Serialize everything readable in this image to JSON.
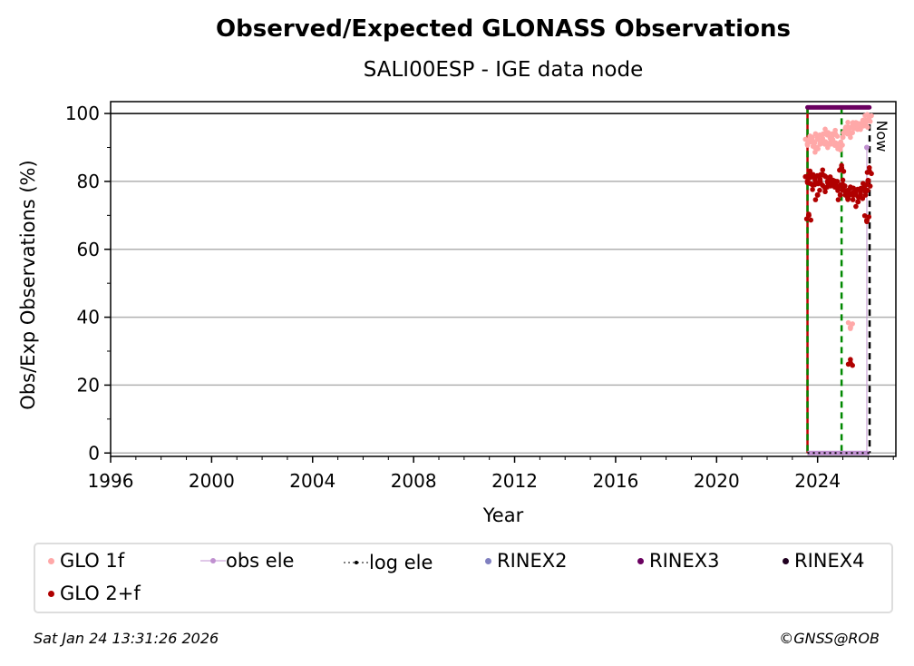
{
  "chart_data": {
    "type": "scatter",
    "title": "Observed/Expected GLONASS Observations",
    "subtitle": "SALI00ESP - IGE data node",
    "xlabel": "Year",
    "ylabel": "Obs/Exp Observations (%)",
    "xlim": [
      1996,
      2027.1
    ],
    "ylim": [
      -1,
      103.5
    ],
    "xticks": [
      "1996",
      "2000",
      "2004",
      "2008",
      "2012",
      "2016",
      "2020",
      "2024"
    ],
    "yticks": [
      "0",
      "20",
      "40",
      "60",
      "80",
      "100"
    ],
    "grid": "horizontal",
    "now_label": "Now",
    "now_x": 2026.06,
    "green_lines_x": [
      2023.6,
      2024.95
    ],
    "series": [
      {
        "name": "GLO 1f",
        "color": "#ffa8a8",
        "x": [
          2023.6,
          2023.7,
          2023.8,
          2023.9,
          2024.0,
          2024.1,
          2024.2,
          2024.3,
          2024.4,
          2024.5,
          2024.6,
          2024.7,
          2024.8,
          2024.9,
          2025.0,
          2025.1,
          2025.2,
          2025.3,
          2025.3,
          2025.4,
          2025.5,
          2025.6,
          2025.7,
          2025.8,
          2025.9,
          2026.0,
          2026.05
        ],
        "y": [
          91,
          93,
          92,
          90,
          93,
          91,
          92,
          94,
          91,
          93,
          92,
          94,
          91,
          90,
          93,
          95,
          96,
          94,
          37,
          97,
          96,
          97,
          96,
          98,
          97,
          98,
          99
        ]
      },
      {
        "name": "GLO 2+f",
        "color": "#b00000",
        "x": [
          2023.6,
          2023.65,
          2023.7,
          2023.8,
          2023.9,
          2024.0,
          2024.1,
          2024.2,
          2024.3,
          2024.4,
          2024.5,
          2024.6,
          2024.7,
          2024.8,
          2024.9,
          2024.95,
          2025.0,
          2025.1,
          2025.2,
          2025.3,
          2025.3,
          2025.4,
          2025.5,
          2025.6,
          2025.7,
          2025.8,
          2025.9,
          2025.95,
          2026.0,
          2026.05
        ],
        "y": [
          80,
          70,
          82,
          79,
          81,
          76,
          80,
          82,
          78,
          80,
          81,
          79,
          80,
          78,
          76,
          84,
          79,
          77,
          75,
          78,
          26.5,
          76,
          77,
          74,
          76,
          78,
          77,
          68.5,
          80,
          83
        ]
      },
      {
        "name": "RINEX3",
        "color": "#6a0060",
        "x": [
          2023.6,
          2026.05
        ],
        "y": [
          101.8,
          101.8
        ]
      },
      {
        "name": "obs ele",
        "color": "#c090d0",
        "x": [
          2023.6,
          2026.05
        ],
        "y": [
          0,
          0
        ]
      },
      {
        "name": "log ele",
        "color": "#000000",
        "x": [
          2023.6,
          2026.05
        ],
        "y": [
          0,
          0
        ]
      },
      {
        "name": "RINEX2",
        "color": "#8080c0",
        "x": [],
        "y": []
      },
      {
        "name": "RINEX4",
        "color": "#200020",
        "x": [],
        "y": []
      }
    ]
  },
  "legend": [
    {
      "label": "GLO 1f",
      "color": "#ffa8a8"
    },
    {
      "label": "obs ele",
      "color": "#c090d0"
    },
    {
      "label": "log ele",
      "color": "#000000"
    },
    {
      "label": "RINEX2",
      "color": "#8080c0"
    },
    {
      "label": "RINEX3",
      "color": "#6a0060"
    },
    {
      "label": "RINEX4",
      "color": "#200020"
    },
    {
      "label": "GLO 2+f",
      "color": "#b00000"
    }
  ],
  "footer": {
    "timestamp": "Sat Jan 24 13:31:26 2026",
    "credit": "©GNSS@ROB"
  }
}
